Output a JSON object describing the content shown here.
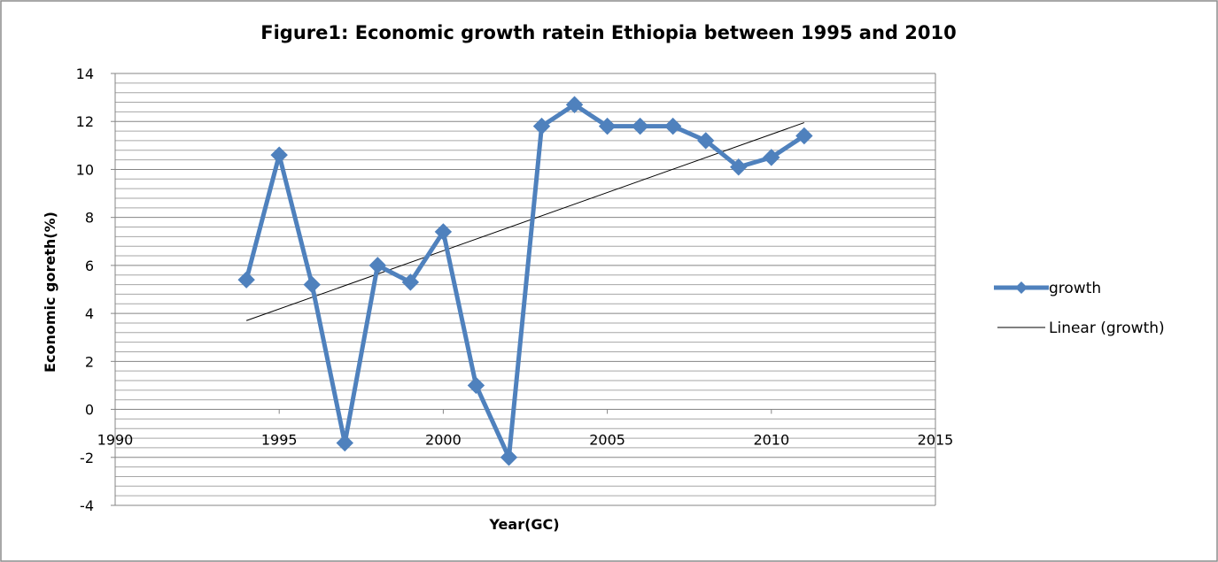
{
  "chart_data": {
    "type": "line",
    "title": "Figure1: Economic growth ratein Ethiopia between 1995 and 2010",
    "xlabel": "Year(GC)",
    "ylabel": "Economic goreth(%)",
    "xlim": [
      1990,
      2015
    ],
    "ylim": [
      -4,
      14
    ],
    "x_ticks": [
      1990,
      1995,
      2000,
      2005,
      2010,
      2015
    ],
    "y_ticks": [
      -4,
      -2,
      0,
      2,
      4,
      6,
      8,
      10,
      12,
      14
    ],
    "y_minor_step": 0.4,
    "grid": true,
    "legend_position": "right",
    "series": [
      {
        "name": "growth",
        "color": "#4F81BD",
        "marker": "diamond",
        "x": [
          1994,
          1995,
          1996,
          1997,
          1998,
          1999,
          2000,
          2001,
          2002,
          2003,
          2004,
          2005,
          2006,
          2007,
          2008,
          2009,
          2010,
          2011
        ],
        "y": [
          5.4,
          10.6,
          5.2,
          -1.4,
          6.0,
          5.3,
          7.4,
          1.0,
          -2.0,
          11.8,
          12.7,
          11.8,
          11.8,
          11.8,
          11.2,
          10.1,
          10.5,
          11.4
        ]
      },
      {
        "name": "Linear (growth)",
        "color": "#000000",
        "type": "trendline",
        "x": [
          1994,
          2011
        ],
        "y": [
          3.7,
          11.95
        ]
      }
    ]
  }
}
